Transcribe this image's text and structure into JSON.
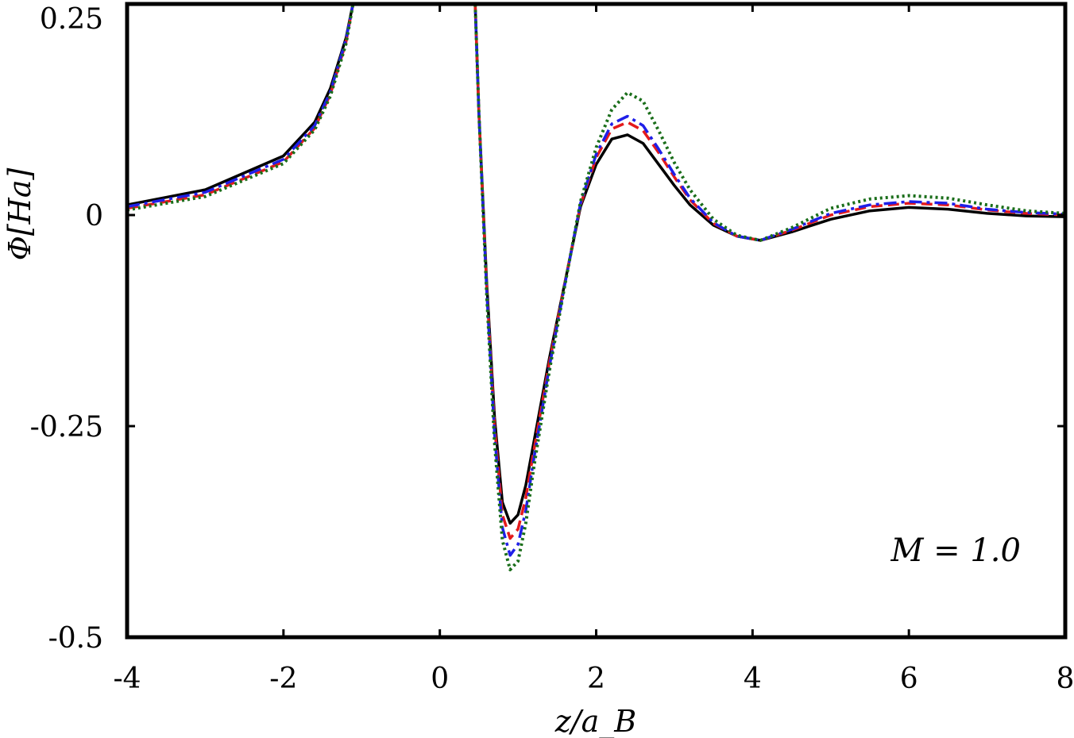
{
  "chart_data": {
    "type": "line",
    "title": "",
    "xlabel": "z/a_B",
    "ylabel": "Φ[Ha]",
    "xlim": [
      -4,
      8
    ],
    "ylim": [
      -0.5,
      0.25
    ],
    "x_ticks": [
      -4,
      -2,
      0,
      2,
      4,
      6,
      8
    ],
    "y_ticks": [
      -0.5,
      -0.25,
      0,
      0.25
    ],
    "x_tick_labels": [
      "-4",
      "-2",
      "0",
      "2",
      "4",
      "6",
      "8"
    ],
    "y_tick_labels": [
      "-0.5",
      "-0.25",
      "0",
      "0.25"
    ],
    "grid": false,
    "legend": "none",
    "annotations": [
      {
        "text": "M = 1.0",
        "x": 6.6,
        "y": -0.41
      }
    ],
    "series": [
      {
        "color": "#000000",
        "dash": "solid",
        "x": [
          -4.0,
          -3.0,
          -2.0,
          -1.6,
          -1.4,
          -1.2,
          -1.1,
          0.45,
          0.5,
          0.6,
          0.7,
          0.8,
          0.9,
          1.0,
          1.1,
          1.2,
          1.4,
          1.6,
          1.8,
          2.0,
          2.2,
          2.4,
          2.6,
          2.8,
          3.0,
          3.2,
          3.5,
          3.8,
          4.1,
          4.5,
          5.0,
          5.5,
          6.0,
          6.5,
          7.0,
          7.5,
          8.0
        ],
        "y": [
          0.012,
          0.03,
          0.07,
          0.11,
          0.15,
          0.21,
          0.255,
          0.255,
          0.12,
          -0.08,
          -0.24,
          -0.34,
          -0.365,
          -0.355,
          -0.32,
          -0.27,
          -0.17,
          -0.08,
          0.01,
          0.06,
          0.09,
          0.095,
          0.085,
          0.06,
          0.035,
          0.012,
          -0.012,
          -0.025,
          -0.03,
          -0.02,
          -0.005,
          0.005,
          0.009,
          0.007,
          0.002,
          -0.001,
          -0.002
        ]
      },
      {
        "color": "#e41a1c",
        "dash": "dashed",
        "x": [
          -4.0,
          -3.0,
          -2.0,
          -1.6,
          -1.4,
          -1.2,
          -1.1,
          0.45,
          0.5,
          0.6,
          0.7,
          0.8,
          0.9,
          1.0,
          1.1,
          1.2,
          1.4,
          1.6,
          1.8,
          2.0,
          2.2,
          2.4,
          2.6,
          2.8,
          3.0,
          3.2,
          3.5,
          3.8,
          4.1,
          4.5,
          5.0,
          5.5,
          6.0,
          6.5,
          7.0,
          7.5,
          8.0
        ],
        "y": [
          0.008,
          0.024,
          0.063,
          0.103,
          0.143,
          0.205,
          0.255,
          0.255,
          0.12,
          -0.085,
          -0.25,
          -0.355,
          -0.383,
          -0.372,
          -0.335,
          -0.28,
          -0.175,
          -0.08,
          0.012,
          0.068,
          0.102,
          0.11,
          0.1,
          0.074,
          0.045,
          0.018,
          -0.01,
          -0.025,
          -0.03,
          -0.018,
          0.0,
          0.01,
          0.014,
          0.012,
          0.006,
          0.002,
          0.0
        ]
      },
      {
        "color": "#1f1fe8",
        "dash": "dashdot",
        "x": [
          -4.0,
          -3.0,
          -2.0,
          -1.6,
          -1.4,
          -1.2,
          -1.1,
          0.45,
          0.5,
          0.6,
          0.7,
          0.8,
          0.9,
          1.0,
          1.1,
          1.2,
          1.4,
          1.6,
          1.8,
          2.0,
          2.2,
          2.4,
          2.6,
          2.8,
          3.0,
          3.2,
          3.5,
          3.8,
          4.1,
          4.5,
          5.0,
          5.5,
          6.0,
          6.5,
          7.0,
          7.5,
          8.0
        ],
        "y": [
          0.01,
          0.027,
          0.066,
          0.106,
          0.146,
          0.208,
          0.255,
          0.255,
          0.12,
          -0.09,
          -0.26,
          -0.37,
          -0.403,
          -0.39,
          -0.35,
          -0.29,
          -0.18,
          -0.082,
          0.014,
          0.072,
          0.108,
          0.117,
          0.106,
          0.078,
          0.048,
          0.02,
          -0.009,
          -0.025,
          -0.03,
          -0.017,
          0.002,
          0.012,
          0.016,
          0.014,
          0.007,
          0.003,
          0.001
        ]
      },
      {
        "color": "#1a6e1a",
        "dash": "dotted",
        "x": [
          -4.0,
          -3.0,
          -2.0,
          -1.6,
          -1.4,
          -1.2,
          -1.1,
          0.45,
          0.5,
          0.6,
          0.7,
          0.8,
          0.9,
          1.0,
          1.1,
          1.2,
          1.4,
          1.6,
          1.8,
          2.0,
          2.2,
          2.4,
          2.6,
          2.8,
          3.0,
          3.2,
          3.5,
          3.8,
          4.1,
          4.5,
          5.0,
          5.5,
          6.0,
          6.5,
          7.0,
          7.5,
          8.0
        ],
        "y": [
          0.006,
          0.022,
          0.061,
          0.101,
          0.141,
          0.203,
          0.255,
          0.255,
          0.12,
          -0.095,
          -0.27,
          -0.385,
          -0.42,
          -0.41,
          -0.365,
          -0.3,
          -0.185,
          -0.083,
          0.016,
          0.08,
          0.125,
          0.145,
          0.135,
          0.1,
          0.062,
          0.03,
          -0.005,
          -0.024,
          -0.03,
          -0.015,
          0.008,
          0.019,
          0.023,
          0.02,
          0.012,
          0.005,
          0.002
        ]
      }
    ]
  }
}
